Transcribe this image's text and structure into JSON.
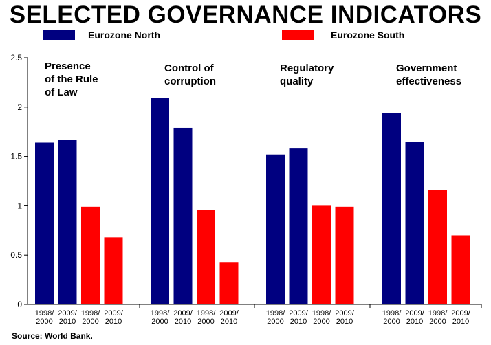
{
  "chart_data": {
    "type": "bar",
    "title": "SELECTED GOVERNANCE INDICATORS",
    "source": "Source: World Bank.",
    "ylim": [
      0,
      2.5
    ],
    "yticks": [
      "0",
      "0.5",
      "1",
      "1.5",
      "2",
      "2.5"
    ],
    "grid": false,
    "legend_position": "top",
    "legend": [
      {
        "name": "Eurozone North",
        "color": "#000080"
      },
      {
        "name": "Eurozone South",
        "color": "#ff0000"
      }
    ],
    "groups": [
      {
        "label_lines": [
          "Presence",
          "of the Rule",
          "of Law"
        ],
        "bars": [
          {
            "category": [
              "1998/",
              "2000"
            ],
            "series": "Eurozone North",
            "value": 1.64
          },
          {
            "category": [
              "2009/",
              "2010"
            ],
            "series": "Eurozone North",
            "value": 1.67
          },
          {
            "category": [
              "1998/",
              "2000"
            ],
            "series": "Eurozone South",
            "value": 0.99
          },
          {
            "category": [
              "2009/",
              "2010"
            ],
            "series": "Eurozone South",
            "value": 0.68
          }
        ]
      },
      {
        "label_lines": [
          "Control of",
          "corruption"
        ],
        "bars": [
          {
            "category": [
              "1998/",
              "2000"
            ],
            "series": "Eurozone North",
            "value": 2.09
          },
          {
            "category": [
              "2009/",
              "2010"
            ],
            "series": "Eurozone North",
            "value": 1.79
          },
          {
            "category": [
              "1998/",
              "2000"
            ],
            "series": "Eurozone South",
            "value": 0.96
          },
          {
            "category": [
              "2009/",
              "2010"
            ],
            "series": "Eurozone South",
            "value": 0.43
          }
        ]
      },
      {
        "label_lines": [
          "Regulatory",
          "quality"
        ],
        "bars": [
          {
            "category": [
              "1998/",
              "2000"
            ],
            "series": "Eurozone North",
            "value": 1.52
          },
          {
            "category": [
              "2009/",
              "2010"
            ],
            "series": "Eurozone North",
            "value": 1.58
          },
          {
            "category": [
              "1998/",
              "2000"
            ],
            "series": "Eurozone South",
            "value": 1.0
          },
          {
            "category": [
              "2009/",
              "2010"
            ],
            "series": "Eurozone South",
            "value": 0.99
          }
        ]
      },
      {
        "label_lines": [
          "Government",
          "effectiveness"
        ],
        "bars": [
          {
            "category": [
              "1998/",
              "2000"
            ],
            "series": "Eurozone North",
            "value": 1.94
          },
          {
            "category": [
              "2009/",
              "2010"
            ],
            "series": "Eurozone North",
            "value": 1.65
          },
          {
            "category": [
              "1998/",
              "2000"
            ],
            "series": "Eurozone South",
            "value": 1.16
          },
          {
            "category": [
              "2009/",
              "2010"
            ],
            "series": "Eurozone South",
            "value": 0.7
          }
        ]
      }
    ]
  }
}
